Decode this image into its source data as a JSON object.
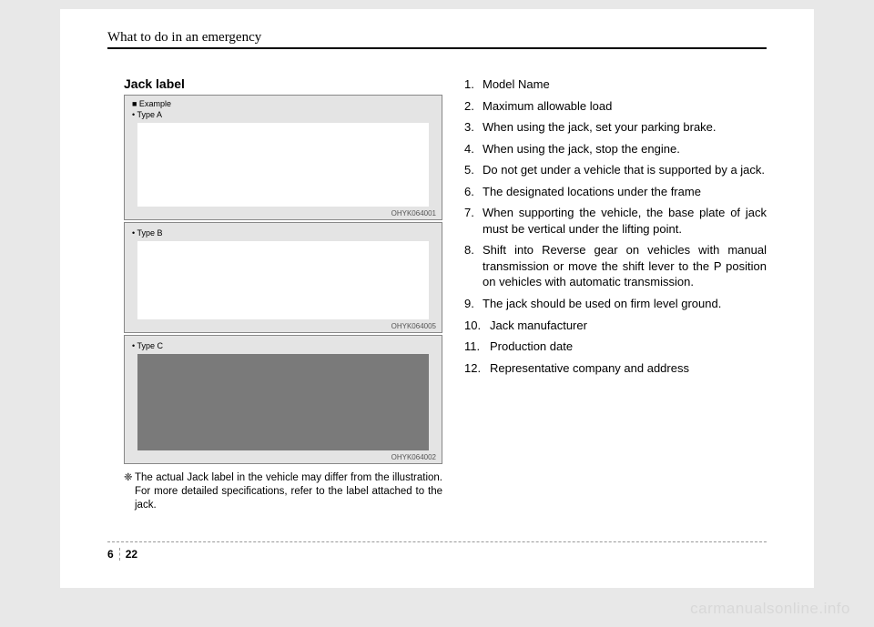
{
  "header": "What to do in an emergency",
  "section_title": "Jack label",
  "labels": {
    "example": "■ Example",
    "type_a": "• Type A",
    "type_b": "• Type B",
    "type_c": "• Type C",
    "code_a": "OHYK064001",
    "code_b": "OHYK064005",
    "code_c": "OHYK064002"
  },
  "note_symbol": "❈",
  "note_text": "The actual Jack label in the vehicle may differ from the illustration. For more detailed specifications, refer to the label attached to the jack.",
  "list": [
    {
      "n": "1.",
      "t": "Model Name"
    },
    {
      "n": "2.",
      "t": "Maximum allowable load"
    },
    {
      "n": "3.",
      "t": "When using the jack, set your parking brake."
    },
    {
      "n": "4.",
      "t": "When using the jack, stop the engine."
    },
    {
      "n": "5.",
      "t": "Do not get under a vehicle that is supported by a jack."
    },
    {
      "n": "6.",
      "t": "The designated locations under the frame"
    },
    {
      "n": "7.",
      "t": "When supporting the vehicle, the base plate of jack must be vertical under the lifting point."
    },
    {
      "n": "8.",
      "t": "Shift into Reverse gear on vehicles with manual transmission or move the shift lever to the P position on vehicles with automatic transmission."
    },
    {
      "n": "9.",
      "t": "The jack should be used on firm level ground."
    },
    {
      "n": "10.",
      "t": "Jack manufacturer"
    },
    {
      "n": "11.",
      "t": "Production date"
    },
    {
      "n": "12.",
      "t": "Representative company and address"
    }
  ],
  "footer": {
    "section": "6",
    "page": "22"
  },
  "watermark": "carmanualsonline.info",
  "colors": {
    "page_bg": "#ffffff",
    "body_bg": "#e8e8e8",
    "label_bg": "#e4e4e4",
    "dark_inner": "#7a7a7a",
    "watermark": "#d8d8d8"
  }
}
